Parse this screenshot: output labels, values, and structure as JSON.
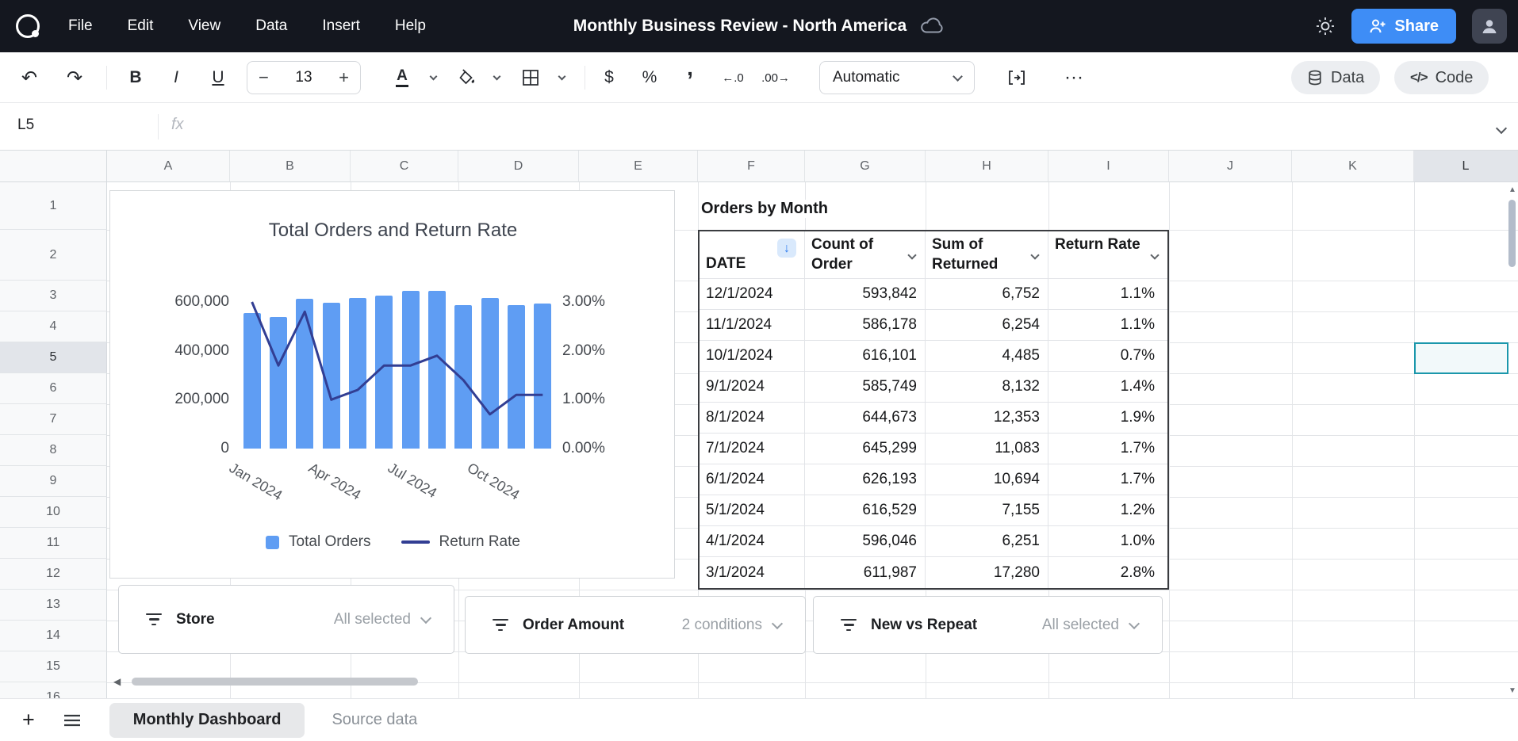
{
  "colors": {
    "topbar_bg": "#14171f",
    "accent_blue": "#3e8df6",
    "bar_blue": "#5f9df3",
    "line_navy": "#323e93",
    "selection_teal": "#1b97ab",
    "sort_icon_blue": "#2e7cf0",
    "sort_icon_bg": "#d9e9fc"
  },
  "topbar": {
    "menu": [
      "File",
      "Edit",
      "View",
      "Data",
      "Insert",
      "Help"
    ],
    "title": "Monthly Business Review - North America",
    "share_label": "Share"
  },
  "toolbar": {
    "bold": "B",
    "italic": "I",
    "underline": "U",
    "font_size_minus": "−",
    "font_size": "13",
    "font_size_plus": "+",
    "text_color": "A",
    "currency": "$",
    "percent": "%",
    "comma": ",",
    "number_format": "Automatic",
    "data_button": "Data",
    "code_button": "Code"
  },
  "icons": {
    "undo": "↶",
    "redo": "↷",
    "more": "···",
    "decrease_decimals": "←.0",
    "increase_decimals": ".00→",
    "sort_desc": "↓",
    "sheet_add": "+",
    "code_glyph": "</>",
    "scroll_left": "◀",
    "scroll_up": "▲",
    "scroll_down": "▼"
  },
  "formula_bar": {
    "cell_ref": "L5",
    "fx": "fx",
    "value": ""
  },
  "grid": {
    "columns": [
      "A",
      "B",
      "C",
      "D",
      "E",
      "F",
      "G",
      "H",
      "I",
      "J",
      "K",
      "L"
    ],
    "row_labels": [
      "1",
      "2",
      "3",
      "4",
      "5",
      "6",
      "7",
      "8",
      "9",
      "10",
      "11",
      "12",
      "13",
      "14",
      "15",
      "16"
    ],
    "selection": {
      "cell": "L5",
      "column": "L",
      "row": "5"
    }
  },
  "chart_data": {
    "type": "combo",
    "title": "Total Orders and Return Rate",
    "categories": [
      "Jan 2024",
      "Feb 2024",
      "Mar 2024",
      "Apr 2024",
      "May 2024",
      "Jun 2024",
      "Jul 2024",
      "Aug 2024",
      "Sep 2024",
      "Oct 2024",
      "Nov 2024",
      "Dec 2024"
    ],
    "x_tick_labels": [
      "Jan 2024",
      "Apr 2024",
      "Jul 2024",
      "Oct 2024"
    ],
    "series": [
      {
        "name": "Total Orders",
        "type": "bar",
        "axis": "left",
        "color": "#5f9df3",
        "values": [
          556000,
          540000,
          611987,
          596046,
          616529,
          626193,
          645299,
          644673,
          585749,
          616101,
          586178,
          593842
        ]
      },
      {
        "name": "Return Rate",
        "type": "line",
        "axis": "right",
        "color": "#323e93",
        "values": [
          3.0,
          1.7,
          2.8,
          1.0,
          1.2,
          1.7,
          1.7,
          1.9,
          1.4,
          0.7,
          1.1,
          1.1
        ]
      }
    ],
    "left_axis": {
      "min": 0,
      "max": 600000,
      "ticks": [
        "0",
        "200,000",
        "400,000",
        "600,000"
      ]
    },
    "right_axis": {
      "min": 0,
      "max": 3,
      "ticks": [
        "0.00%",
        "1.00%",
        "2.00%",
        "3.00%"
      ]
    },
    "legend_position": "bottom",
    "grid": "off"
  },
  "orders_table": {
    "title": "Orders by Month",
    "columns": [
      "DATE",
      "Count of Order",
      "Sum of Returned",
      "Return Rate"
    ],
    "sort": {
      "column": "DATE",
      "direction": "desc"
    },
    "rows": [
      [
        "12/1/2024",
        "593,842",
        "6,752",
        "1.1%"
      ],
      [
        "11/1/2024",
        "586,178",
        "6,254",
        "1.1%"
      ],
      [
        "10/1/2024",
        "616,101",
        "4,485",
        "0.7%"
      ],
      [
        "9/1/2024",
        "585,749",
        "8,132",
        "1.4%"
      ],
      [
        "8/1/2024",
        "644,673",
        "12,353",
        "1.9%"
      ],
      [
        "7/1/2024",
        "645,299",
        "11,083",
        "1.7%"
      ],
      [
        "6/1/2024",
        "626,193",
        "10,694",
        "1.7%"
      ],
      [
        "5/1/2024",
        "616,529",
        "7,155",
        "1.2%"
      ],
      [
        "4/1/2024",
        "596,046",
        "6,251",
        "1.0%"
      ],
      [
        "3/1/2024",
        "611,987",
        "17,280",
        "2.8%"
      ]
    ]
  },
  "filters": [
    {
      "label": "Store",
      "value": "All selected"
    },
    {
      "label": "Order Amount",
      "value": "2 conditions"
    },
    {
      "label": "New vs Repeat",
      "value": "All selected"
    }
  ],
  "sheet_tabs": [
    {
      "label": "Monthly Dashboard",
      "active": true
    },
    {
      "label": "Source data",
      "active": false
    }
  ]
}
